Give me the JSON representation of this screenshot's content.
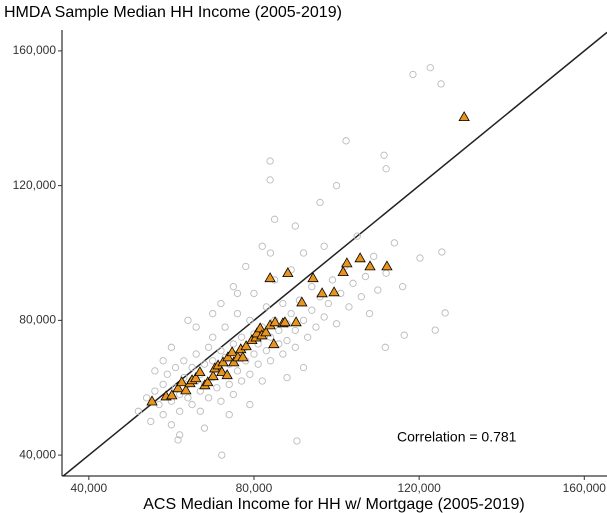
{
  "chart_data": {
    "type": "scatter",
    "title": "HMDA Sample Median HH Income (2005-2019)",
    "x_label": "ACS Median Income for HH w/ Mortgage (2005-2019)",
    "annotation": "Correlation = 0.781",
    "xlim": [
      33500,
      165500
    ],
    "ylim": [
      33800,
      166200
    ],
    "xticks": [
      {
        "value": 40000,
        "label": "40,000"
      },
      {
        "value": 80000,
        "label": "80,000"
      },
      {
        "value": 120000,
        "label": "120,000"
      },
      {
        "value": 160000,
        "label": "160,000"
      }
    ],
    "yticks": [
      {
        "value": 40000,
        "label": "40,000"
      },
      {
        "value": 80000,
        "label": "80,000"
      },
      {
        "value": 120000,
        "label": "120,000"
      },
      {
        "value": 160000,
        "label": "160,000"
      }
    ],
    "grid": false,
    "series": [
      {
        "marker": "circle",
        "color": "#bbbbbb",
        "x": [
          52000,
          54000,
          55000,
          56000,
          57000,
          58000,
          58000,
          59000,
          60000,
          60000,
          61000,
          61000,
          62000,
          62000,
          63000,
          63000,
          64000,
          64000,
          65000,
          65000,
          66000,
          66000,
          67000,
          67000,
          67000,
          68000,
          68000,
          69000,
          69000,
          70000,
          70000,
          70000,
          71000,
          71000,
          72000,
          72000,
          73000,
          73000,
          73000,
          74000,
          74000,
          75000,
          75000,
          76000,
          76000,
          76000,
          77000,
          77000,
          78000,
          78000,
          79000,
          79000,
          80000,
          80000,
          80000,
          81000,
          81000,
          82000,
          82000,
          83000,
          83000,
          84000,
          84000,
          85000,
          85000,
          86000,
          86000,
          87000,
          87000,
          88000,
          88000,
          89000,
          89000,
          90000,
          90000,
          91000,
          92000,
          92000,
          93000,
          94000,
          94000,
          95000,
          96000,
          97000,
          97000,
          98000,
          99000,
          100000,
          101000,
          102000,
          103000,
          104000,
          105000,
          106000,
          107000,
          108000,
          109000,
          110000,
          112000,
          114000,
          116000,
          66000,
          72000,
          75000,
          78000,
          82000,
          85000,
          60000,
          64000,
          68000,
          74000,
          79000,
          56000,
          62000,
          88000,
          92000,
          58000,
          70000,
          76000,
          84000,
          90000,
          96000,
          100000,
          118500,
          122700,
          125300,
          126300,
          112000,
          111500,
          102300,
          83900,
          83900,
          90400,
          72200,
          61600,
          116400,
          123900,
          111800,
          125500,
          120200
        ],
        "values": [
          53000,
          57000,
          50000,
          59000,
          55000,
          61000,
          52000,
          64000,
          56000,
          49000,
          60000,
          66000,
          58000,
          53000,
          63000,
          68000,
          57000,
          61000,
          55000,
          66000,
          62000,
          70000,
          59000,
          64000,
          53000,
          67000,
          61000,
          72000,
          57000,
          63000,
          68000,
          75000,
          60000,
          66000,
          71000,
          56000,
          64000,
          69000,
          78000,
          61000,
          67000,
          73000,
          58000,
          65000,
          70000,
          82000,
          62000,
          75000,
          68000,
          72000,
          64000,
          80000,
          70000,
          76000,
          88000,
          67000,
          73000,
          78000,
          62000,
          71000,
          84000,
          75000,
          68000,
          80000,
          92000,
          73000,
          77000,
          70000,
          85000,
          79000,
          74000,
          82000,
          95000,
          77000,
          72000,
          86000,
          80000,
          100000,
          75000,
          83000,
          90000,
          78000,
          87000,
          81000,
          102000,
          85000,
          92000,
          79000,
          88000,
          96000,
          84000,
          91000,
          105000,
          87000,
          93000,
          82000,
          99000,
          89000,
          94000,
          103000,
          90000,
          78000,
          85000,
          90000,
          96000,
          102000,
          110000,
          72000,
          80000,
          48000,
          52000,
          55000,
          65000,
          46000,
          63000,
          66000,
          68000,
          82000,
          88000,
          100000,
          108000,
          115000,
          120000,
          153000,
          155000,
          150200,
          82200,
          125000,
          129000,
          133300,
          127300,
          121700,
          44200,
          40000,
          44500,
          75600,
          77100,
          72000,
          100300,
          98500
        ]
      },
      {
        "marker": "triangle",
        "color": "#e8951f",
        "x": [
          55300,
          58700,
          60100,
          61600,
          62500,
          63500,
          64500,
          65000,
          65900,
          66900,
          68100,
          68800,
          70100,
          70500,
          71300,
          72500,
          72200,
          73500,
          73700,
          74700,
          75100,
          76100,
          76800,
          77300,
          78100,
          79500,
          80500,
          80700,
          81500,
          81900,
          82900,
          83900,
          85100,
          84800,
          87000,
          87500,
          90200,
          83900,
          88200,
          91600,
          94300,
          96500,
          99400,
          101600,
          102500,
          105700,
          108100,
          112200,
          130900
        ],
        "values": [
          56000,
          57500,
          57800,
          59900,
          61700,
          59300,
          61400,
          62300,
          62900,
          64700,
          60800,
          61700,
          63500,
          65800,
          66700,
          67600,
          64700,
          63800,
          69100,
          70600,
          67600,
          69100,
          71500,
          69100,
          72400,
          74200,
          75000,
          76200,
          77700,
          75600,
          76500,
          78600,
          79500,
          73000,
          79200,
          79500,
          79500,
          92600,
          94100,
          85400,
          92600,
          88100,
          88400,
          94400,
          97000,
          98500,
          96100,
          96100,
          140400
        ]
      }
    ]
  }
}
